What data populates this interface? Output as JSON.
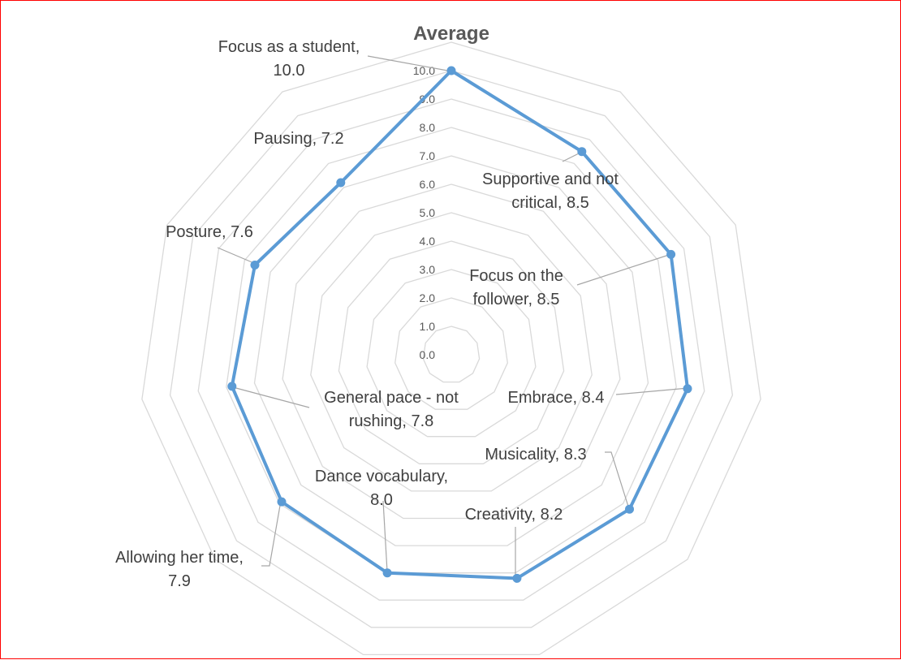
{
  "chart_data": {
    "type": "radar",
    "title": "Average",
    "axis_range": [
      0,
      10
    ],
    "tick_labels": [
      "0.0",
      "1.0",
      "2.0",
      "3.0",
      "4.0",
      "5.0",
      "6.0",
      "7.0",
      "8.0",
      "9.0",
      "10.0"
    ],
    "grid": true,
    "legend": "none",
    "categories": [
      "Focus as a student",
      "Supportive and not critical",
      "Focus on the follower",
      "Embrace",
      "Musicality",
      "Creativity",
      "Dance vocabulary",
      "Allowing her time",
      "General pace - not rushing",
      "Posture",
      "Pausing"
    ],
    "values": [
      10.0,
      8.5,
      8.5,
      8.4,
      8.3,
      8.2,
      8.0,
      7.9,
      7.8,
      7.6,
      7.2
    ],
    "data_labels": [
      [
        "Focus as a student,",
        "10.0"
      ],
      [
        "Supportive and not",
        "critical, 8.5"
      ],
      [
        "Focus on the",
        "follower, 8.5"
      ],
      [
        "Embrace, 8.4"
      ],
      [
        "Musicality, 8.3"
      ],
      [
        "Creativity, 8.2"
      ],
      [
        "Dance vocabulary,",
        "8.0"
      ],
      [
        "Allowing her time,",
        "7.9"
      ],
      [
        "General pace - not",
        "rushing, 7.8"
      ],
      [
        "Posture, 7.6"
      ],
      [
        "Pausing, 7.2"
      ]
    ],
    "colors": {
      "series": "#5b9bd5",
      "grid": "#d9d9d9",
      "leader": "#a6a6a6",
      "border": "#ff0000"
    }
  }
}
